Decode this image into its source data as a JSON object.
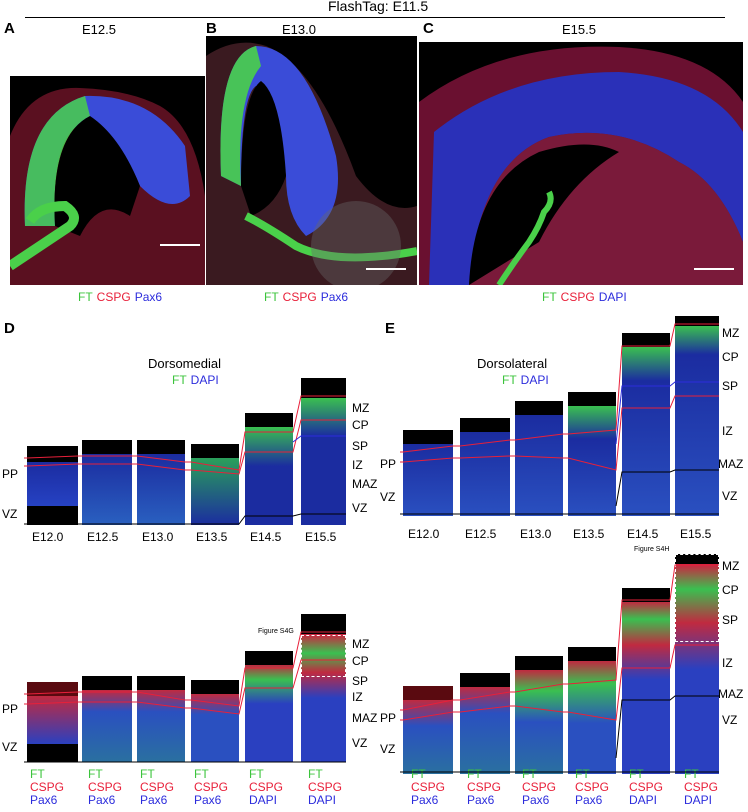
{
  "header": {
    "title": "FlashTag: E11.5"
  },
  "top_panels": [
    {
      "letter": "A",
      "stage": "E12.5",
      "legend": [
        "FT",
        "CSPG",
        "Pax6"
      ]
    },
    {
      "letter": "B",
      "stage": "E13.0",
      "legend": [
        "FT",
        "CSPG",
        "Pax6"
      ]
    },
    {
      "letter": "C",
      "stage": "E15.5",
      "legend": [
        "FT",
        "CSPG",
        "DAPI"
      ]
    }
  ],
  "panel_d": {
    "letter": "D",
    "title": "Dorsomedial",
    "legend": [
      "FT",
      "DAPI"
    ],
    "stages": [
      "E12.0",
      "E12.5",
      "E13.0",
      "E13.5",
      "E14.5",
      "E15.5"
    ],
    "zone_labels_left": [
      "PP",
      "VZ"
    ],
    "zone_labels_right": [
      "MZ",
      "CP",
      "SP",
      "IZ",
      "MAZ",
      "VZ"
    ],
    "inset_label": "Figure S4G",
    "bottom_legends": [
      [
        "FT",
        "CSPG",
        "Pax6"
      ],
      [
        "FT",
        "CSPG",
        "Pax6"
      ],
      [
        "FT",
        "CSPG",
        "Pax6"
      ],
      [
        "FT",
        "CSPG",
        "Pax6"
      ],
      [
        "FT",
        "CSPG",
        "DAPI"
      ],
      [
        "FT",
        "CSPG",
        "DAPI"
      ]
    ]
  },
  "panel_e": {
    "letter": "E",
    "title": "Dorsolateral",
    "legend": [
      "FT",
      "DAPI"
    ],
    "stages": [
      "E12.0",
      "E12.5",
      "E13.0",
      "E13.5",
      "E14.5",
      "E15.5"
    ],
    "zone_labels_left": [
      "PP",
      "VZ"
    ],
    "zone_labels_right": [
      "MZ",
      "CP",
      "SP",
      "IZ",
      "MAZ",
      "VZ"
    ],
    "inset_label": "Figure S4H",
    "bottom_legends": [
      [
        "FT",
        "CSPG",
        "Pax6"
      ],
      [
        "FT",
        "CSPG",
        "Pax6"
      ],
      [
        "FT",
        "CSPG",
        "Pax6"
      ],
      [
        "FT",
        "CSPG",
        "Pax6"
      ],
      [
        "FT",
        "CSPG",
        "DAPI"
      ],
      [
        "FT",
        "CSPG",
        "DAPI"
      ]
    ]
  },
  "colors": {
    "ft": "#3cc43c",
    "cspg": "#e8203a",
    "pax6": "#2c2cdc",
    "dapi": "#2c2cdc"
  }
}
